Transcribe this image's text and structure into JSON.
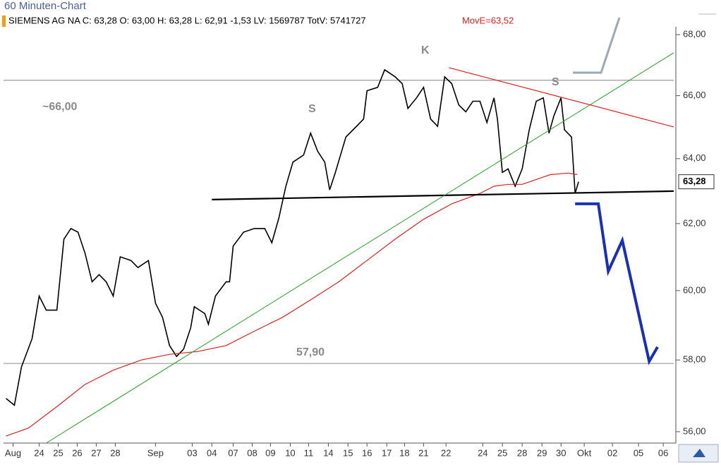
{
  "chart_data": {
    "type": "line",
    "title": "60 Minuten-Chart",
    "header": "SIEMENS AG NA C: 63,28 O: 63,00 H: 63,28 L: 62,91 -1,53 LV: 1569787 TotV: 5741727",
    "header_indicator": "MovE=63,52",
    "log_scale": true,
    "xlim": [
      -0.5,
      34.7
    ],
    "ylim": [
      55.69,
      68.26
    ],
    "yticks": [
      {
        "value": 56,
        "label": "56,00"
      },
      {
        "value": 58,
        "label": "58,00"
      },
      {
        "value": 60,
        "label": "60,00"
      },
      {
        "value": 62,
        "label": "62,00"
      },
      {
        "value": 64,
        "label": "64,00"
      },
      {
        "value": 66,
        "label": "66,00"
      },
      {
        "value": 68,
        "label": "68,00"
      }
    ],
    "xticks": [
      {
        "value": 0,
        "label": "Aug"
      },
      {
        "value": 1.37,
        "label": "24"
      },
      {
        "value": 2.37,
        "label": "25"
      },
      {
        "value": 3.37,
        "label": "26"
      },
      {
        "value": 4.37,
        "label": "27"
      },
      {
        "value": 5.37,
        "label": "28"
      },
      {
        "value": 7.48,
        "label": "Sep"
      },
      {
        "value": 9.41,
        "label": "03"
      },
      {
        "value": 10.44,
        "label": "04"
      },
      {
        "value": 11.56,
        "label": "07"
      },
      {
        "value": 12.56,
        "label": "08"
      },
      {
        "value": 13.52,
        "label": "09"
      },
      {
        "value": 14.56,
        "label": "10"
      },
      {
        "value": 15.52,
        "label": "11"
      },
      {
        "value": 16.56,
        "label": "14"
      },
      {
        "value": 17.59,
        "label": "15"
      },
      {
        "value": 18.59,
        "label": "16"
      },
      {
        "value": 19.63,
        "label": "17"
      },
      {
        "value": 20.56,
        "label": "18"
      },
      {
        "value": 21.56,
        "label": "21"
      },
      {
        "value": 22.74,
        "label": "22"
      },
      {
        "value": 24.67,
        "label": "24"
      },
      {
        "value": 25.7,
        "label": "25"
      },
      {
        "value": 26.74,
        "label": "28"
      },
      {
        "value": 27.78,
        "label": "29"
      },
      {
        "value": 28.78,
        "label": "30"
      },
      {
        "value": 30.0,
        "label": "Okt"
      },
      {
        "value": 31.48,
        "label": "02"
      },
      {
        "value": 32.85,
        "label": "05"
      },
      {
        "value": 34.15,
        "label": "06"
      }
    ],
    "series": [
      {
        "color": "#000000",
        "x": [
          -0.37,
          0.07,
          0.44,
          1.0,
          1.37,
          1.74,
          2.3,
          2.67,
          3.04,
          3.41,
          3.78,
          4.15,
          4.52,
          4.89,
          5.26,
          5.63,
          6.19,
          6.56,
          7.11,
          7.48,
          7.85,
          8.22,
          8.59,
          8.96,
          9.33,
          9.52,
          10.07,
          10.26,
          10.63,
          11.19,
          11.37,
          11.56,
          12.11,
          12.67,
          13.22,
          13.59,
          13.96,
          14.33,
          14.7,
          15.26,
          15.63,
          16.0,
          16.37,
          16.63,
          16.93,
          17.48,
          18.04,
          18.41,
          18.59,
          19.15,
          19.52,
          20.07,
          20.44,
          20.74,
          21.19,
          21.56,
          21.93,
          22.3,
          22.67,
          23.04,
          23.41,
          23.78,
          24.15,
          24.52,
          24.89,
          25.26,
          25.44,
          25.7,
          26.0,
          26.37,
          26.74,
          27.11,
          27.48,
          27.85,
          28.15,
          28.41,
          28.78,
          28.96,
          29.33,
          29.52,
          29.7
        ],
        "values": [
          56.92,
          56.73,
          57.8,
          58.61,
          59.84,
          59.43,
          59.43,
          61.53,
          61.85,
          61.74,
          61.11,
          60.26,
          60.47,
          60.26,
          59.84,
          61.0,
          60.89,
          60.68,
          60.89,
          59.63,
          59.22,
          58.41,
          58.1,
          58.31,
          58.92,
          59.53,
          59.33,
          59.02,
          59.84,
          60.26,
          60.26,
          61.32,
          61.74,
          61.85,
          61.85,
          61.42,
          62.17,
          63.14,
          63.89,
          64.11,
          64.8,
          64.23,
          63.89,
          63.03,
          63.57,
          64.68,
          65.02,
          65.25,
          66.16,
          66.27,
          66.84,
          66.61,
          66.39,
          65.59,
          65.93,
          66.27,
          65.25,
          65.02,
          66.61,
          66.39,
          65.7,
          65.48,
          65.82,
          65.82,
          65.14,
          65.93,
          65.25,
          63.57,
          63.68,
          63.14,
          63.68,
          64.91,
          65.82,
          65.93,
          64.8,
          65.36,
          65.93,
          64.91,
          64.68,
          62.92,
          63.28
        ]
      },
      {
        "color": "#e02020",
        "x": [
          -0.37,
          0.81,
          2.3,
          3.78,
          5.26,
          6.74,
          8.22,
          9.7,
          11.19,
          12.67,
          14.15,
          15.63,
          17.11,
          18.59,
          20.07,
          21.56,
          23.04,
          24.52,
          25.26,
          26.0,
          26.74,
          27.48,
          28.22,
          29.15,
          29.63
        ],
        "values": [
          55.88,
          56.1,
          56.69,
          57.31,
          57.71,
          58.0,
          58.16,
          58.24,
          58.41,
          58.82,
          59.22,
          59.73,
          60.26,
          60.89,
          61.53,
          62.13,
          62.6,
          62.92,
          63.14,
          63.2,
          63.2,
          63.35,
          63.5,
          63.55,
          63.5
        ]
      }
    ],
    "last_price": {
      "value": 63.28,
      "label": "63,28"
    },
    "levels": [
      {
        "value": 66.5,
        "color": "#999999"
      },
      {
        "value": 57.9,
        "color": "#999999"
      }
    ],
    "trendlines": [
      {
        "color": "#000000",
        "x": [
          10.44,
          34.7
        ],
        "values": [
          62.73,
          62.99
        ]
      },
      {
        "color": "#22a022",
        "x": [
          1.74,
          34.7
        ],
        "values": [
          55.69,
          67.4
        ]
      },
      {
        "color": "#e02020",
        "x": [
          22.89,
          34.7
        ],
        "values": [
          66.91,
          65.0
        ]
      },
      {
        "color": "#1a2fb8",
        "x": [
          29.52,
          30.74,
          31.26,
          32.0,
          33.41,
          33.85
        ],
        "values": [
          62.6,
          62.6,
          60.57,
          61.49,
          57.96,
          58.37
        ]
      }
    ],
    "annotations": [
      "~66,00",
      "S",
      "K",
      "S",
      "57,90"
    ]
  }
}
